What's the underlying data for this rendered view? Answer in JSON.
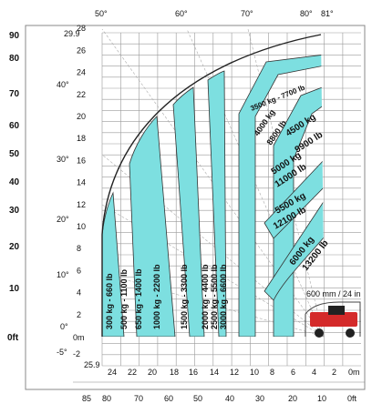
{
  "chart_data": {
    "type": "load-chart",
    "top_angles": [
      "50°",
      "60°",
      "70°",
      "80°",
      "81°"
    ],
    "left_angles": [
      "40°",
      "30°",
      "20°",
      "10°",
      "0°",
      "-5°"
    ],
    "height_m_ticks": [
      "2",
      "4",
      "6",
      "8",
      "10",
      "12",
      "14",
      "16",
      "18",
      "20",
      "22",
      "24",
      "26",
      "28",
      "29.9"
    ],
    "height_m_bottom": "0m",
    "height_m_below": "-2",
    "height_ft_ticks": [
      "90",
      "80",
      "70",
      "60",
      "50",
      "40",
      "30",
      "20",
      "10",
      "0ft"
    ],
    "reach_m_ticks": [
      "25.9",
      "24",
      "22",
      "20",
      "18",
      "16",
      "14",
      "12",
      "10",
      "8",
      "6",
      "4",
      "2",
      "0m"
    ],
    "reach_ft_ticks": [
      "85",
      "80",
      "70",
      "60",
      "50",
      "40",
      "30",
      "20",
      "10",
      "0ft"
    ],
    "zones": [
      {
        "label": "300 kg - 660 lb"
      },
      {
        "label": "500 kg - 1100 lb"
      },
      {
        "label": "650 kg - 1400 lb"
      },
      {
        "label": "1000 kg - 2200 lb"
      },
      {
        "label": "1500 kg - 3300 lb"
      },
      {
        "label": "2000 kg - 4400 lb"
      },
      {
        "label": "2500 kg - 5500 lb"
      },
      {
        "label": "3000 kg - 6600 lb"
      },
      {
        "label": "3500 kg - 7700 lb"
      },
      {
        "label_kg": "4000 kg",
        "label_lb": "8800 lb"
      },
      {
        "label_kg": "4500 kg",
        "label_lb": "9900 lb"
      },
      {
        "label_kg": "5000 kg",
        "label_lb": "11000 lb"
      },
      {
        "label_kg": "5500 kg",
        "label_lb": "12100 lb"
      },
      {
        "label_kg": "6000 kg",
        "label_lb": "13200 lb"
      }
    ],
    "dimension_note": "600 mm / 24 in",
    "colors": {
      "zone_fill": "#7ddfe0",
      "grid": "#9a9a9a",
      "text": "#111111",
      "machine": "#d42a2a"
    }
  }
}
